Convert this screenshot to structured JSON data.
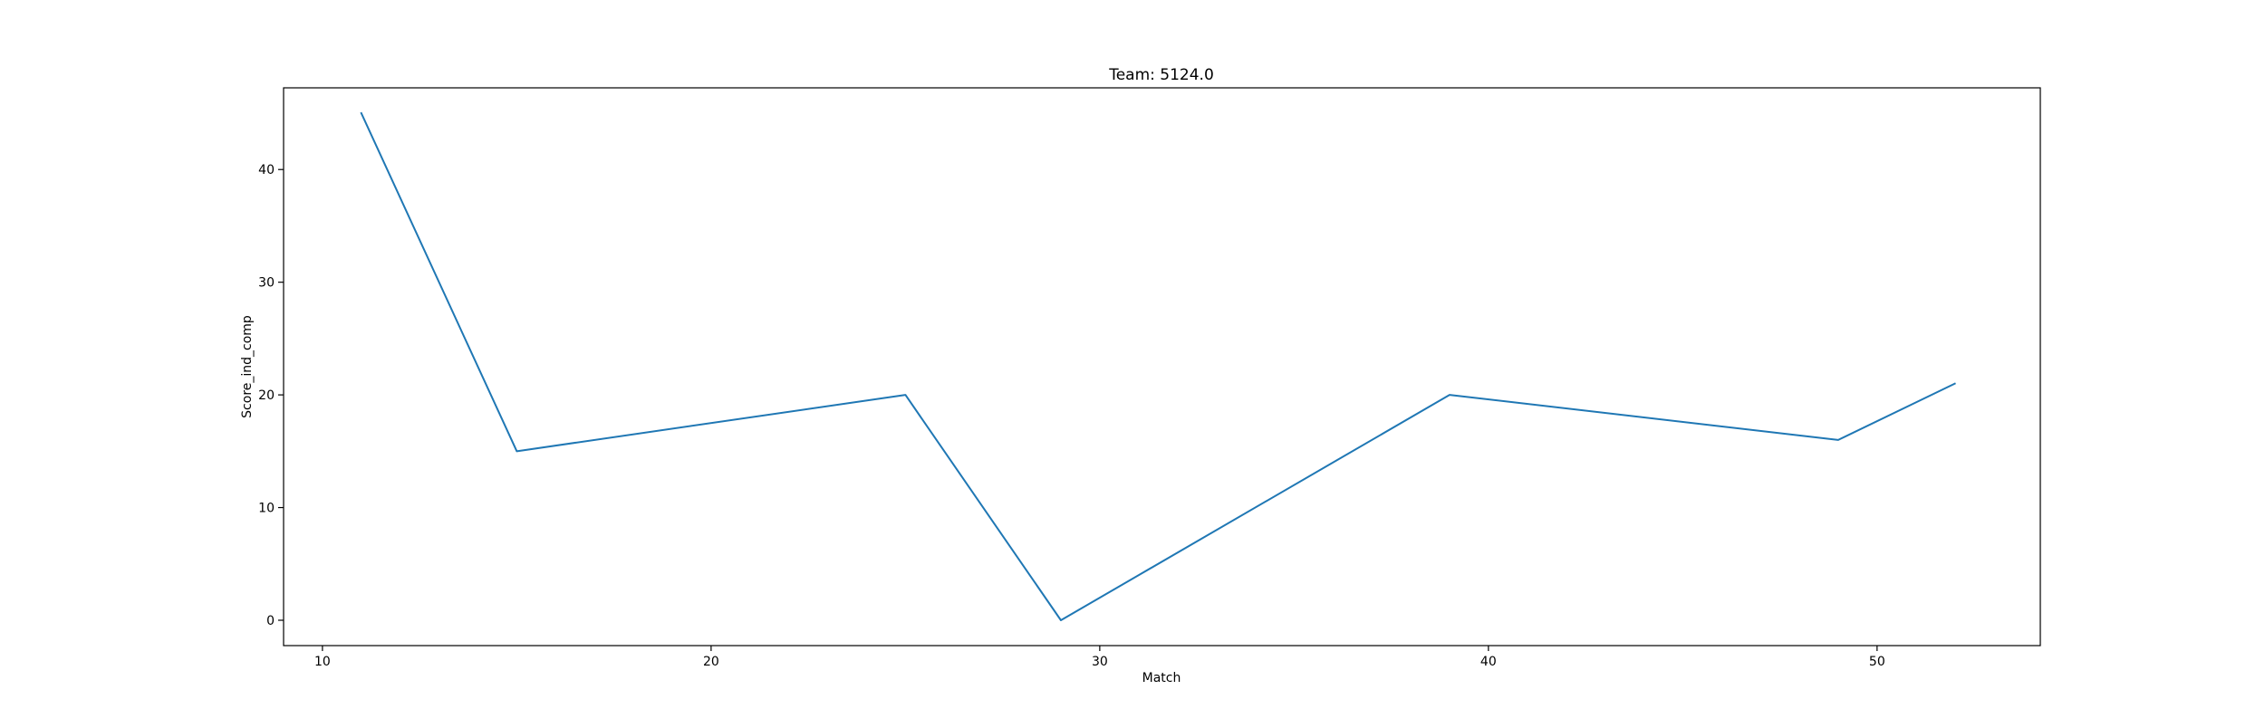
{
  "chart_data": {
    "type": "line",
    "title": "Team: 5124.0",
    "xlabel": "Match",
    "ylabel": "Score_ind_comp",
    "xlim": [
      9,
      54.2
    ],
    "ylim": [
      -2.25,
      47.25
    ],
    "x_ticks": [
      10,
      20,
      30,
      40,
      50
    ],
    "y_ticks": [
      0,
      10,
      20,
      30,
      40
    ],
    "grid": false,
    "legend": "none",
    "line_color": "#1f77b4",
    "series": [
      {
        "x": [
          11,
          15,
          25,
          29,
          39,
          49,
          52
        ],
        "y": [
          45,
          15,
          20,
          0,
          20,
          16,
          21
        ]
      }
    ]
  }
}
